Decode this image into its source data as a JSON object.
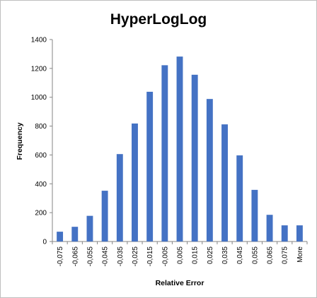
{
  "chart_data": {
    "type": "bar",
    "title": "HyperLogLog",
    "xlabel": "Relative Error",
    "ylabel": "Frequency",
    "categories": [
      "-0,075",
      "-0,065",
      "-0,055",
      "-0,045",
      "-0,035",
      "-0,025",
      "-0,015",
      "-0,005",
      "0,005",
      "0,015",
      "0,025",
      "0,035",
      "0,045",
      "0,055",
      "0,065",
      "0,075",
      "More"
    ],
    "series": [
      {
        "values": [
          68,
          102,
          178,
          352,
          606,
          818,
          1038,
          1222,
          1282,
          1156,
          988,
          812,
          597,
          358,
          185,
          112,
          112
        ]
      }
    ],
    "ylim": [
      0,
      1400
    ],
    "yticks": [
      0,
      200,
      400,
      600,
      800,
      1000,
      1200,
      1400
    ],
    "grid": false,
    "legend": "none",
    "colors": {
      "bar": "#4472c4",
      "axis": "#868686"
    }
  }
}
